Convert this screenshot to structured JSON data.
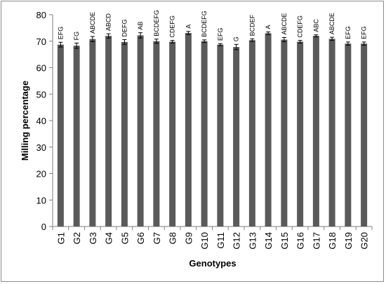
{
  "chart_data": {
    "type": "bar",
    "title": "",
    "xlabel": "Genotypes",
    "ylabel": "Milling percentage",
    "ylim": [
      0,
      80
    ],
    "yticks": [
      0,
      10,
      20,
      30,
      40,
      50,
      60,
      70,
      80
    ],
    "grid": false,
    "legend": "none",
    "categories": [
      "G1",
      "G2",
      "G3",
      "G4",
      "G5",
      "G6",
      "G7",
      "G8",
      "G9",
      "G10",
      "G11",
      "G12",
      "G13",
      "G14",
      "G15",
      "G16",
      "G17",
      "G18",
      "G19",
      "G20"
    ],
    "values": [
      68.7,
      68.3,
      70.8,
      72.0,
      69.7,
      72.2,
      70.0,
      69.8,
      73.1,
      70.0,
      68.7,
      67.8,
      70.4,
      73.0,
      70.6,
      69.8,
      72.0,
      70.9,
      69.1,
      69.1
    ],
    "errors": [
      0.9,
      1.0,
      1.0,
      0.8,
      0.9,
      1.0,
      0.8,
      0.5,
      0.6,
      0.5,
      0.4,
      1.0,
      0.5,
      0.5,
      0.8,
      0.5,
      0.4,
      0.6,
      0.6,
      0.6
    ],
    "significance": [
      "EFG",
      "FG",
      "ABCDE",
      "ABCD",
      "DEFG",
      "AB",
      "BCDEFG",
      "CDEFG",
      "A",
      "BCDEFG",
      "EFG",
      "G",
      "BCDEF",
      "A",
      "ABCDE",
      "CDEFG",
      "ABC",
      "ABCDE",
      "EFG",
      "EFG"
    ],
    "colors": {
      "bar": "#5a5a5a",
      "axis": "#7f7f7f",
      "error": "#000000",
      "border": "#8c8c8c"
    }
  }
}
